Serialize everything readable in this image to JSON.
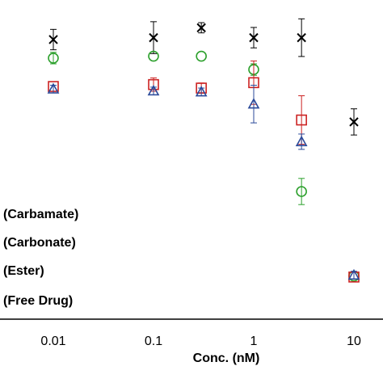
{
  "chart_data": {
    "type": "scatter",
    "xlabel": "Conc. (nM)",
    "xscale": "log",
    "xlim": [
      0.005,
      15
    ],
    "ylim": [
      0,
      100
    ],
    "x_ticks": [
      {
        "value": 0.01,
        "label": "0.01"
      },
      {
        "value": 0.1,
        "label": "0.1"
      },
      {
        "value": 1,
        "label": "1"
      },
      {
        "value": 10,
        "label": "10"
      }
    ],
    "legend_placement": "bottom-left",
    "legend": [
      {
        "label": "(Carbamate)"
      },
      {
        "label": "(Carbonate)"
      },
      {
        "label": "(Ester)"
      },
      {
        "label": "(Free Drug)"
      }
    ],
    "series": [
      {
        "marker": "x",
        "color": "#000000",
        "points": [
          {
            "x": 0.01,
            "y": 87.6,
            "err": 3.2
          },
          {
            "x": 0.1,
            "y": 88.2,
            "err": 5.0
          },
          {
            "x": 0.3,
            "y": 91.3,
            "err": 1.6
          },
          {
            "x": 1,
            "y": 88.2,
            "err": 3.2
          },
          {
            "x": 3,
            "y": 88.2,
            "err": 5.9
          },
          {
            "x": 10,
            "y": 61.8,
            "err": 4.1
          }
        ]
      },
      {
        "marker": "circle",
        "color": "#2ca02c",
        "points": [
          {
            "x": 0.01,
            "y": 81.8,
            "err": 1.8
          },
          {
            "x": 0.1,
            "y": 82.4,
            "err": 0
          },
          {
            "x": 0.3,
            "y": 82.4,
            "err": 0
          },
          {
            "x": 1,
            "y": 78.2,
            "err": 1.8
          },
          {
            "x": 3,
            "y": 40.0,
            "err": 4.1
          },
          {
            "x": 10,
            "y": 13.5,
            "err": 0
          }
        ]
      },
      {
        "marker": "square",
        "color": "#cc2222",
        "points": [
          {
            "x": 0.01,
            "y": 72.9,
            "err": 0
          },
          {
            "x": 0.1,
            "y": 73.5,
            "err": 2.1
          },
          {
            "x": 0.3,
            "y": 72.4,
            "err": 1.6
          },
          {
            "x": 1,
            "y": 74.1,
            "err": 6.8
          },
          {
            "x": 3,
            "y": 62.4,
            "err": 7.6
          },
          {
            "x": 10,
            "y": 13.2,
            "err": 0
          }
        ]
      },
      {
        "marker": "triangle",
        "color": "#2b4a9a",
        "points": [
          {
            "x": 0.01,
            "y": 72.1,
            "err": 1.2
          },
          {
            "x": 0.1,
            "y": 71.5,
            "err": 1.2
          },
          {
            "x": 0.3,
            "y": 71.2,
            "err": 1.2
          },
          {
            "x": 1,
            "y": 67.4,
            "err": 5.9
          },
          {
            "x": 3,
            "y": 55.6,
            "err": 2.4
          },
          {
            "x": 10,
            "y": 13.8,
            "err": 1.2
          }
        ]
      }
    ]
  }
}
